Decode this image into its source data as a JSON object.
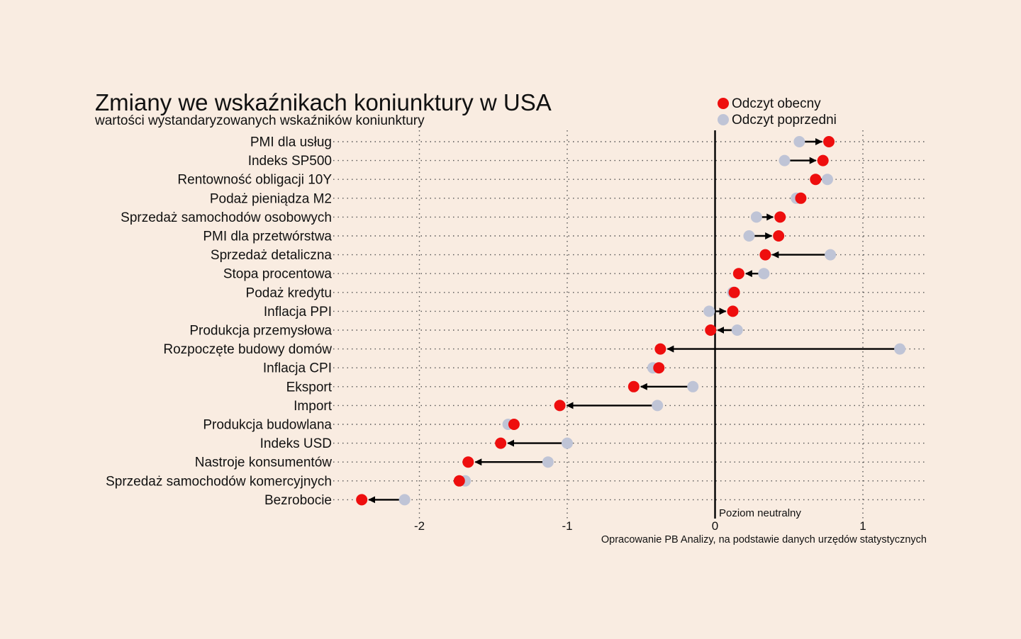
{
  "chart_data": {
    "type": "dumbbell",
    "title": "Zmiany we wskaźnikach koniunktury w USA",
    "subtitle": "wartości wystandaryzowanych wskaźników koniunktury",
    "legend": {
      "position": "top-right",
      "items": [
        {
          "label": "Odczyt obecny",
          "color": "#ee0e0e"
        },
        {
          "label": "Odczyt poprzedni",
          "color": "#bfc4d6"
        }
      ]
    },
    "xlim": [
      -2.55,
      1.45
    ],
    "x_ticks": [
      -2,
      -1,
      0,
      1
    ],
    "x_tick_labels": [
      "-2",
      "-1",
      "0",
      "1"
    ],
    "neutral_label": "Poziom neutralny",
    "source": "Opracowanie PB Analizy, na podstawie danych urzędów statystycznych",
    "grid": "vertical dotted at ticks, horizontal dotted per row",
    "categories": [
      "PMI dla usług",
      "Indeks SP500",
      "Rentowność obligacji 10Y",
      "Podaż pieniądza M2",
      "Sprzedaż samochodów osobowych",
      "PMI dla przetwórstwa",
      "Sprzedaż detaliczna",
      "Stopa procentowa",
      "Podaż kredytu",
      "Inflacja PPI",
      "Produkcja przemysłowa",
      "Rozpoczęte budowy domów",
      "Inflacja CPI",
      "Eksport",
      "Import",
      "Produkcja budowlana",
      "Indeks USD",
      "Nastroje konsumentów",
      "Sprzedaż samochodów komercyjnych",
      "Bezrobocie"
    ],
    "series": [
      {
        "name": "Odczyt obecny",
        "values": [
          0.77,
          0.73,
          0.68,
          0.58,
          0.44,
          0.43,
          0.34,
          0.16,
          0.13,
          0.12,
          -0.03,
          -0.37,
          -0.38,
          -0.55,
          -1.05,
          -1.36,
          -1.45,
          -1.67,
          -1.73,
          -2.39
        ]
      },
      {
        "name": "Odczyt poprzedni",
        "values": [
          0.57,
          0.47,
          0.76,
          0.55,
          0.28,
          0.23,
          0.78,
          0.33,
          0.12,
          -0.04,
          0.15,
          1.25,
          -0.42,
          -0.15,
          -0.39,
          -1.4,
          -1.0,
          -1.13,
          -1.69,
          -2.1
        ]
      }
    ]
  }
}
